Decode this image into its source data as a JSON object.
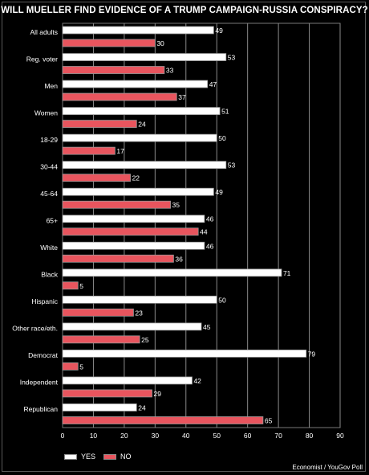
{
  "chart_data": {
    "type": "bar",
    "orientation": "horizontal",
    "title": "WILL MUELLER FIND EVIDENCE OF A TRUMP CAMPAIGN-RUSSIA CONSPIRACY?",
    "categories": [
      "All adults",
      "Reg. voter",
      "Men",
      "Women",
      "18-29",
      "30-44",
      "45-64",
      "65+",
      "White",
      "Black",
      "Hispanic",
      "Other race/eth.",
      "Democrat",
      "Independent",
      "Republican"
    ],
    "series": [
      {
        "name": "YES",
        "color": "#ffffff",
        "values": [
          49,
          53,
          47,
          51,
          50,
          53,
          49,
          46,
          46,
          71,
          50,
          45,
          79,
          42,
          24
        ]
      },
      {
        "name": "NO",
        "color": "#e8555e",
        "values": [
          30,
          33,
          37,
          24,
          17,
          22,
          35,
          44,
          36,
          5,
          23,
          25,
          5,
          29,
          65
        ]
      }
    ],
    "xlim": [
      0,
      90
    ],
    "xticks": [
      "0",
      "10",
      "20",
      "30",
      "40",
      "50",
      "60",
      "70",
      "80",
      "90"
    ],
    "grid": true,
    "legend_position": "bottom-left"
  },
  "source": "Economist / YouGov Poll"
}
